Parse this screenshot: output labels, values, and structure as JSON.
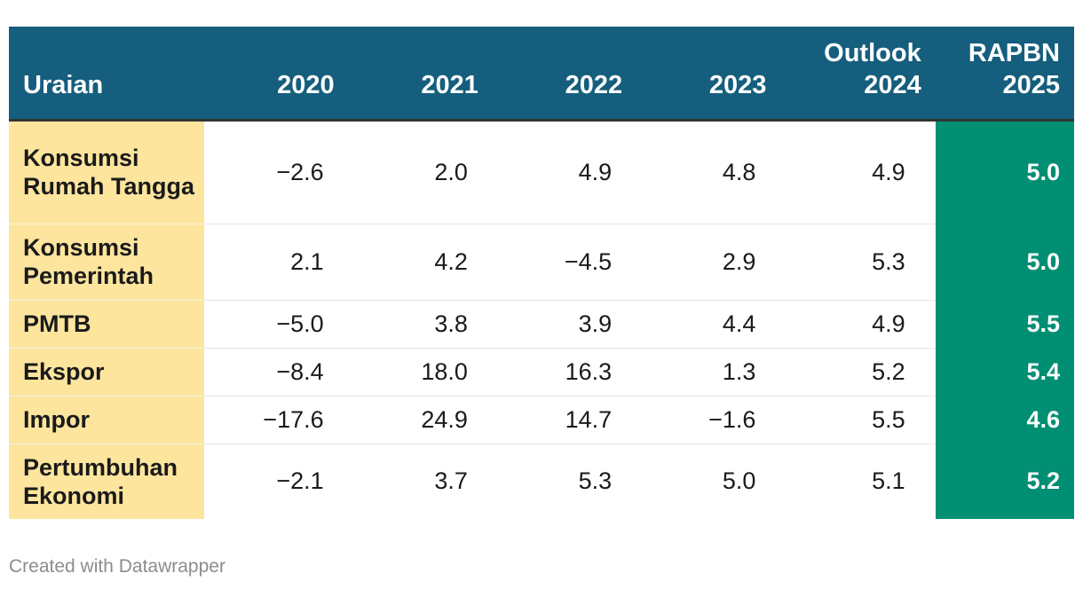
{
  "chart_data": {
    "type": "table",
    "columns": [
      "Uraian",
      "2020",
      "2021",
      "2022",
      "2023",
      "Outlook 2024",
      "RAPBN 2025"
    ],
    "header_lines": [
      [
        "",
        "Uraian"
      ],
      [
        "",
        "2020"
      ],
      [
        "",
        "2021"
      ],
      [
        "",
        "2022"
      ],
      [
        "",
        "2023"
      ],
      [
        "Outlook",
        "2024"
      ],
      [
        "RAPBN",
        "2025"
      ]
    ],
    "rows": [
      {
        "label": "Konsumsi Rumah Tangga",
        "values": [
          "−2.6",
          "2.0",
          "4.9",
          "4.8",
          "4.9",
          "5.0"
        ]
      },
      {
        "label": "Konsumsi Pemerintah",
        "values": [
          "2.1",
          "4.2",
          "−4.5",
          "2.9",
          "5.3",
          "5.0"
        ]
      },
      {
        "label": "PMTB",
        "values": [
          "−5.0",
          "3.8",
          "3.9",
          "4.4",
          "4.9",
          "5.5"
        ]
      },
      {
        "label": "Ekspor",
        "values": [
          "−8.4",
          "18.0",
          "16.3",
          "1.3",
          "5.2",
          "5.4"
        ]
      },
      {
        "label": "Impor",
        "values": [
          "−17.6",
          "24.9",
          "14.7",
          "−1.6",
          "5.5",
          "4.6"
        ]
      },
      {
        "label": "Pertumbuhan Ekonomi",
        "values": [
          "−2.1",
          "3.7",
          "5.3",
          "5.0",
          "5.1",
          "5.2"
        ]
      }
    ],
    "colors": {
      "header_background": "#155e7d",
      "label_column_background": "#fde59e",
      "highlight_column_background": "#008f72"
    }
  },
  "footer": {
    "credit": "Created with Datawrapper"
  }
}
